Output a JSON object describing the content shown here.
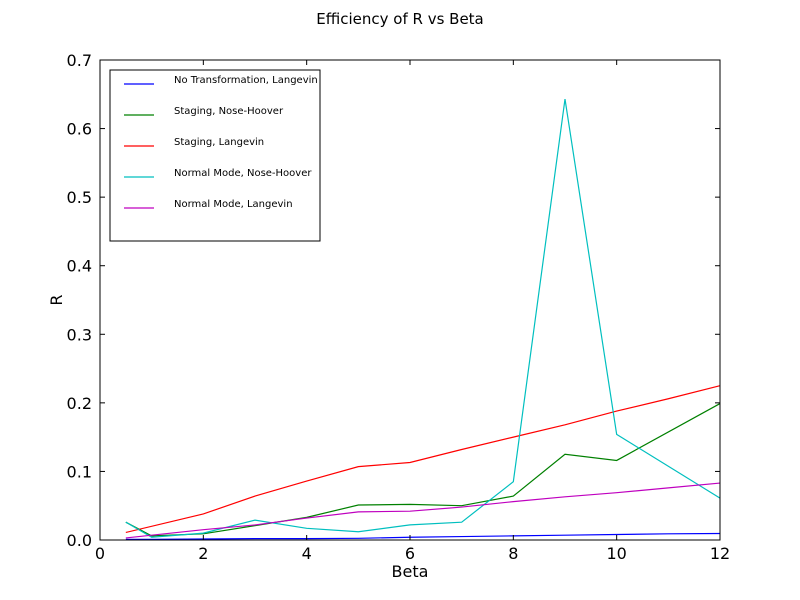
{
  "chart_data": {
    "type": "line",
    "title": "Efficiency of R vs Beta",
    "xlabel": "Beta",
    "ylabel": "R",
    "xlim": [
      0,
      12
    ],
    "ylim": [
      0,
      0.7
    ],
    "xticks": [
      0,
      2,
      4,
      6,
      8,
      10,
      12
    ],
    "xtick_labels": [
      "0",
      "2",
      "4",
      "6",
      "8",
      "10",
      "12"
    ],
    "yticks": [
      0,
      0.1,
      0.2,
      0.3,
      0.4,
      0.5,
      0.6,
      0.7
    ],
    "ytick_labels": [
      "0.0",
      "0.1",
      "0.2",
      "0.3",
      "0.4",
      "0.5",
      "0.6",
      "0.7"
    ],
    "grid": false,
    "legend_position": "top-left",
    "series": [
      {
        "name": "No Transformation, Langevin",
        "color": "#0000ff",
        "x": [
          0.5,
          1,
          2,
          3,
          4,
          5,
          6,
          7,
          8,
          9,
          10,
          11,
          12
        ],
        "y": [
          0.001,
          0.001,
          0.0015,
          0.002,
          0.002,
          0.0025,
          0.004,
          0.005,
          0.006,
          0.007,
          0.008,
          0.009,
          0.0095
        ]
      },
      {
        "name": "Staging, Nose-Hoover",
        "color": "#008000",
        "x": [
          0.5,
          1,
          2,
          3,
          4,
          5,
          6,
          7,
          8,
          9,
          10,
          12
        ],
        "y": [
          0.026,
          0.006,
          0.009,
          0.021,
          0.033,
          0.051,
          0.052,
          0.05,
          0.064,
          0.125,
          0.116,
          0.199
        ]
      },
      {
        "name": "Staging, Langevin",
        "color": "#ff0000",
        "x": [
          0.5,
          2,
          3,
          4,
          5,
          6,
          7,
          8,
          9,
          10,
          11,
          12
        ],
        "y": [
          0.011,
          0.038,
          0.064,
          0.086,
          0.107,
          0.113,
          0.132,
          0.15,
          0.168,
          0.188,
          0.206,
          0.225
        ]
      },
      {
        "name": "Normal Mode, Nose-Hoover",
        "color": "#00bfbf",
        "x": [
          0.5,
          1,
          2,
          3,
          4,
          5,
          6,
          7,
          8,
          9,
          10,
          12
        ],
        "y": [
          0.026,
          0.004,
          0.01,
          0.029,
          0.017,
          0.012,
          0.022,
          0.026,
          0.085,
          0.643,
          0.154,
          0.061
        ]
      },
      {
        "name": "Normal Mode, Langevin",
        "color": "#bf00bf",
        "x": [
          0.5,
          1,
          2,
          3,
          4,
          5,
          6,
          7,
          8,
          9,
          10,
          11,
          12
        ],
        "y": [
          0.003,
          0.007,
          0.015,
          0.022,
          0.032,
          0.041,
          0.042,
          0.048,
          0.056,
          0.063,
          0.069,
          0.076,
          0.083
        ]
      }
    ]
  }
}
